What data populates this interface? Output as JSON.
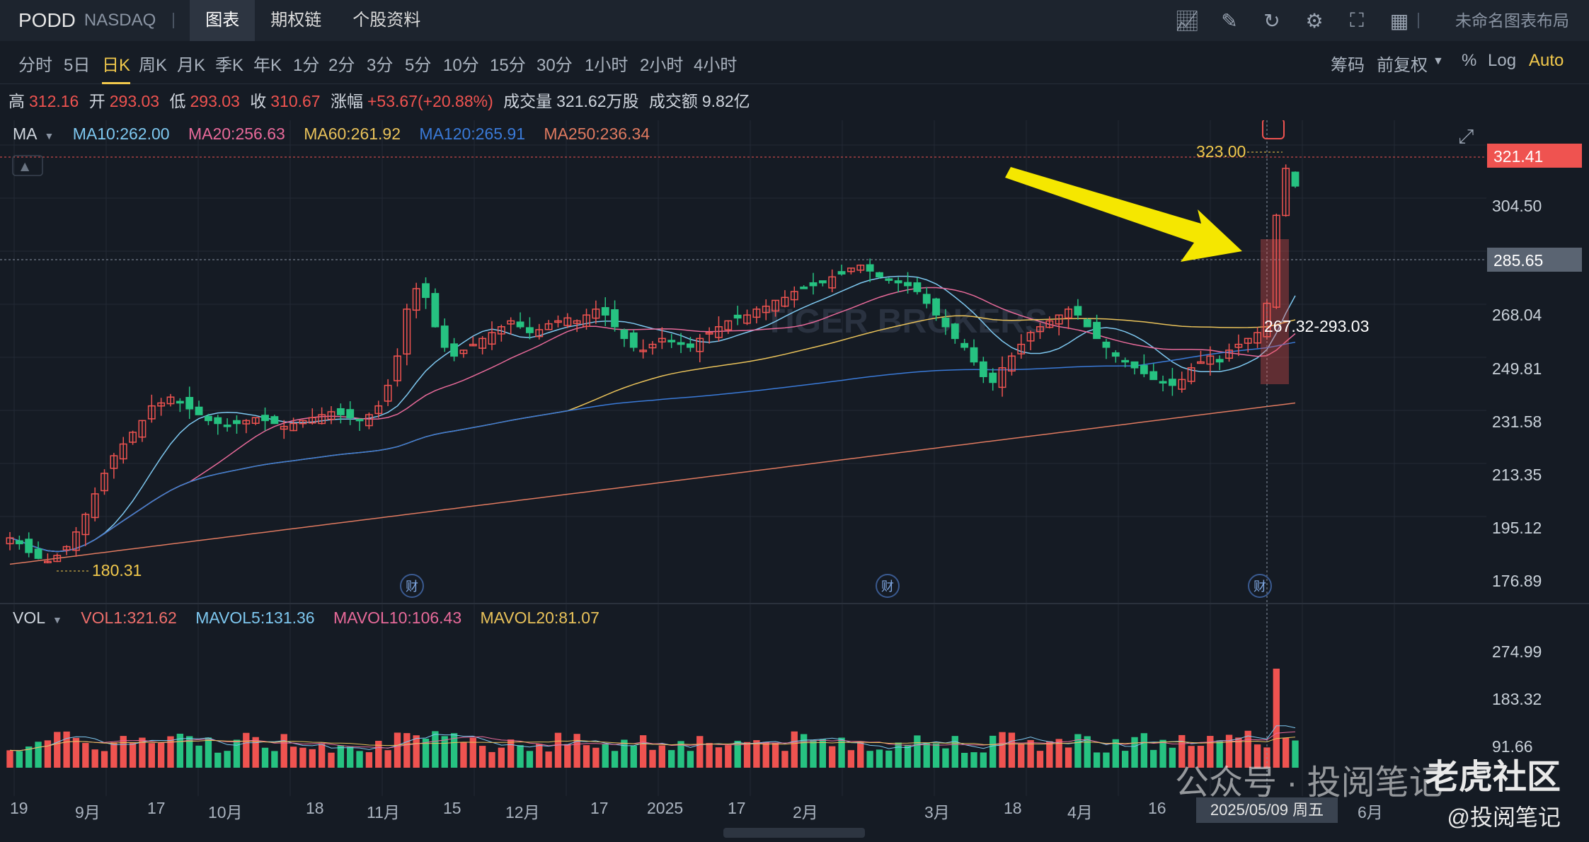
{
  "header": {
    "ticker": "PODD",
    "exchange": "NASDAQ",
    "tabs": [
      {
        "label": "图表",
        "active": true
      },
      {
        "label": "期权链",
        "active": false
      },
      {
        "label": "个股资料",
        "active": false
      }
    ],
    "icons": [
      "chart-icon",
      "pen-icon",
      "refresh-icon",
      "gear-icon",
      "fullscreen-icon",
      "grid-icon"
    ],
    "layout_label": "未命名图表布局"
  },
  "periods": {
    "items": [
      "分时",
      "5日",
      "日K",
      "周K",
      "月K",
      "季K",
      "年K",
      "1分",
      "2分",
      "3分",
      "5分",
      "10分",
      "15分",
      "30分",
      "1小时",
      "2小时",
      "4小时"
    ],
    "active": "日K",
    "right": [
      "筹码",
      "前复权",
      "%",
      "Log",
      "Auto"
    ]
  },
  "quote": {
    "high_label": "高",
    "high": "312.16",
    "open_label": "开",
    "open": "293.03",
    "low_label": "低",
    "low": "293.03",
    "close_label": "收",
    "close": "310.67",
    "change_label": "涨幅",
    "change": "+53.67(+20.88%)",
    "volume_label": "成交量",
    "volume": "321.62万股",
    "turnover_label": "成交额",
    "turnover": "9.82亿"
  },
  "ma_legend": {
    "name": "MA",
    "items": [
      {
        "label": "MA10:262.00",
        "color": "#7ec8f0"
      },
      {
        "label": "MA20:256.63",
        "color": "#e86a9a"
      },
      {
        "label": "MA60:261.92",
        "color": "#e9c25a"
      },
      {
        "label": "MA120:265.91",
        "color": "#3a7ad8"
      },
      {
        "label": "MA250:236.34",
        "color": "#e07a60"
      }
    ]
  },
  "vol_legend": {
    "name": "VOL",
    "items": [
      {
        "label": "VOL1:321.62",
        "color": "#ef6f6c"
      },
      {
        "label": "MAVOL5:131.36",
        "color": "#7ec8f0"
      },
      {
        "label": "MAVOL10:106.43",
        "color": "#e86a9a"
      },
      {
        "label": "MAVOL20:81.07",
        "color": "#e9c25a"
      }
    ]
  },
  "price_axis": [
    "304.50",
    "268.04",
    "249.81",
    "231.58",
    "213.35",
    "195.12",
    "176.89"
  ],
  "price_tags": {
    "last": "321.41",
    "crosshair": "285.65"
  },
  "annotations": {
    "high": "323.00",
    "low": "180.31",
    "range": "267.32-293.03",
    "earnings": "财"
  },
  "vol_axis": [
    "274.99",
    "183.32",
    "91.66"
  ],
  "x_axis": [
    "19",
    "9月",
    "17",
    "10月",
    "18",
    "11月",
    "15",
    "12月",
    "17",
    "2025",
    "17",
    "2月",
    "3月",
    "18",
    "4月",
    "16",
    "6月"
  ],
  "x_tooltip": "2025/05/09 周五",
  "watermark": {
    "brand": "老虎社区",
    "account": "公众号 · 投阅笔记",
    "handle": "@投阅笔记",
    "logo_text": "TIGER BROKERS"
  },
  "colors": {
    "up": "#ef5350",
    "down": "#26c281",
    "accent": "#f2c94c",
    "bg": "#151b24"
  },
  "chart_data": {
    "type": "candlestick",
    "close_series": [
      190,
      188,
      185,
      183,
      182,
      184,
      187,
      192,
      198,
      205,
      212,
      218,
      222,
      226,
      230,
      235,
      236,
      238,
      236,
      234,
      232,
      230,
      229,
      228,
      229,
      230,
      231,
      230,
      229,
      228,
      229,
      230,
      231,
      232,
      233,
      232,
      231,
      230,
      232,
      235,
      242,
      252,
      268,
      275,
      272,
      262,
      255,
      252,
      254,
      256,
      258,
      260,
      262,
      264,
      262,
      260,
      261,
      263,
      264,
      265,
      264,
      266,
      268,
      266,
      262,
      258,
      255,
      254,
      256,
      258,
      257,
      256,
      255,
      258,
      260,
      262,
      264,
      265,
      266,
      268,
      269,
      271,
      272,
      274,
      275,
      276,
      277,
      279,
      280,
      282,
      283,
      281,
      279,
      278,
      277,
      276,
      274,
      270,
      266,
      262,
      258,
      255,
      250,
      245,
      243,
      248,
      252,
      256,
      260,
      262,
      264,
      266,
      268,
      266,
      262,
      258,
      255,
      252,
      250,
      248,
      246,
      244,
      243,
      242,
      244,
      248,
      250,
      252,
      250,
      254,
      256,
      258,
      260,
      270,
      300,
      316,
      310
    ]
  }
}
